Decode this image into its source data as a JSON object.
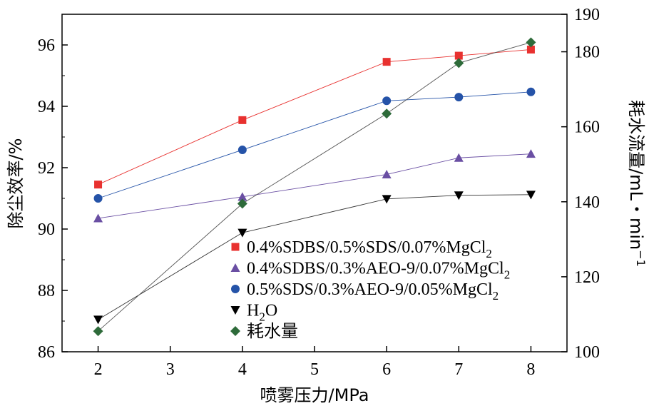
{
  "chart_data": {
    "type": "line",
    "title": "",
    "xlabel": "喷雾压力/MPa",
    "ylabel_left": "除尘效率/%",
    "ylabel_right": {
      "base": "耗水流量/mL・min",
      "sup": "−1"
    },
    "x_ticks": [
      "2",
      "3",
      "4",
      "5",
      "6",
      "7",
      "8"
    ],
    "y_left_ticks": [
      "86",
      "88",
      "90",
      "92",
      "94",
      "96"
    ],
    "y_right_ticks": [
      "100",
      "120",
      "140",
      "160",
      "180",
      "190"
    ],
    "xlim": [
      1.5,
      8.5
    ],
    "ylim_left": [
      86,
      97
    ],
    "ylim_right": [
      100,
      190
    ],
    "x": [
      2,
      4,
      6,
      7,
      8
    ],
    "series": [
      {
        "name": "0.4%SDBS/0.5%SDS/0.07%MgCl",
        "sub": "2",
        "axis": "left",
        "marker": "square",
        "color": "#e8312f",
        "line": "#e8312f",
        "values": [
          91.45,
          93.55,
          95.45,
          95.65,
          95.85
        ]
      },
      {
        "name": "0.4%SDBS/0.3%AEO-9/0.07%MgCl",
        "sub": "2",
        "axis": "left",
        "marker": "triangle",
        "color": "#6a4fa3",
        "line": "#6a4fa3",
        "values": [
          90.35,
          91.05,
          91.78,
          92.32,
          92.45
        ]
      },
      {
        "name": "0.5%SDS/0.3%AEO-9/0.05%MgCl",
        "sub": "2",
        "axis": "left",
        "marker": "circle",
        "color": "#2553a8",
        "line": "#2553a8",
        "values": [
          91.0,
          92.58,
          94.18,
          94.3,
          94.47
        ]
      },
      {
        "name": "H",
        "sub": "2",
        "tail": "O",
        "axis": "left",
        "marker": "triangle-down",
        "color": "#000000",
        "line": "#333333",
        "values": [
          87.05,
          89.88,
          90.98,
          91.1,
          91.12
        ]
      },
      {
        "name": "耗水量",
        "sub": "",
        "axis": "right",
        "marker": "diamond",
        "color": "#2e6b3a",
        "line": "#555555",
        "values": [
          105.5,
          139.5,
          163.5,
          177.0,
          182.5
        ]
      }
    ]
  }
}
